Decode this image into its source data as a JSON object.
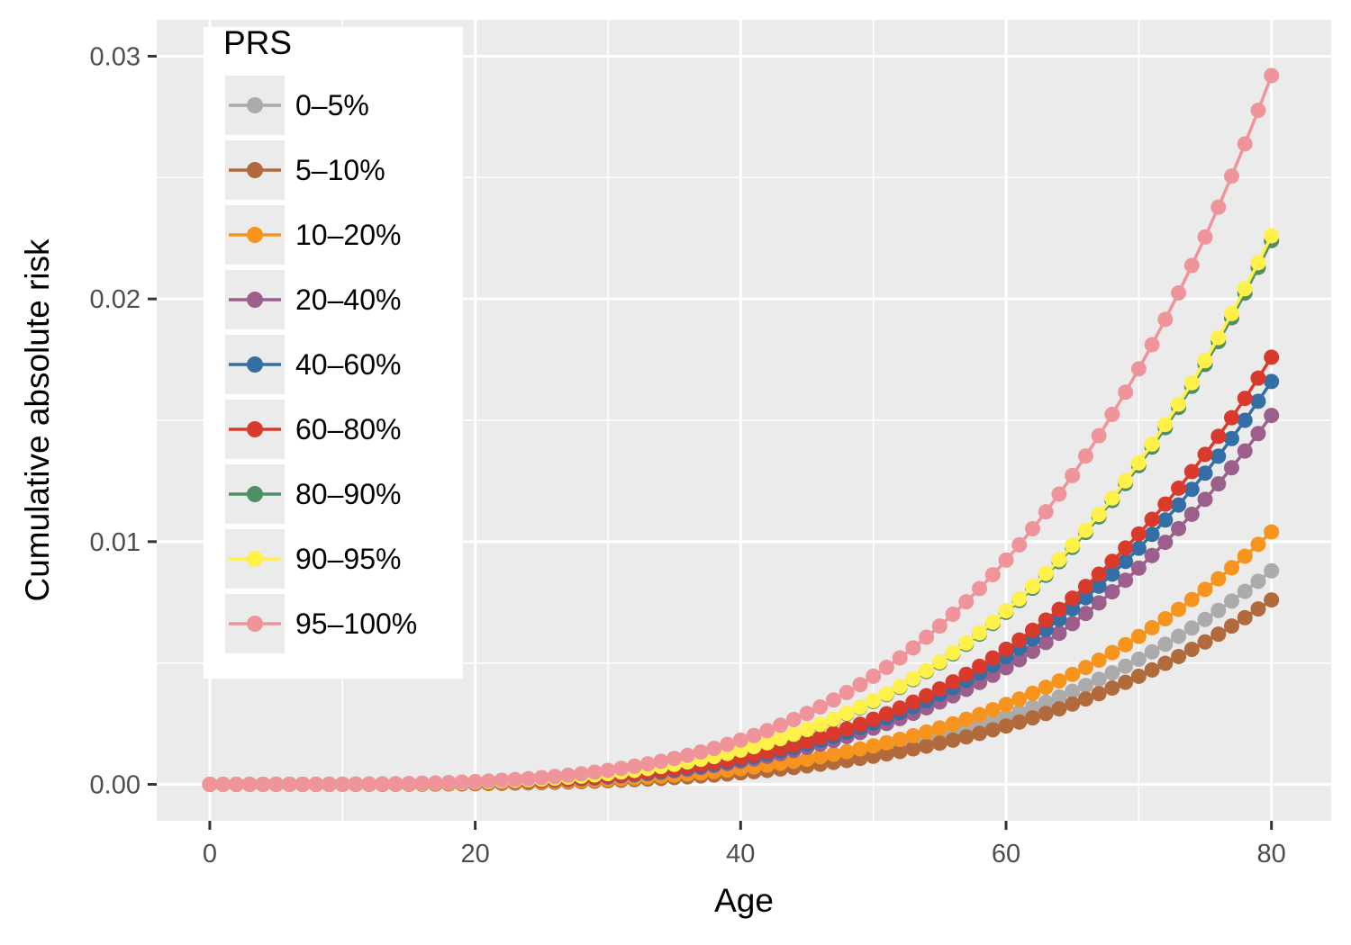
{
  "chart_data": {
    "type": "line",
    "title": "",
    "xlabel": "Age",
    "ylabel": "Cumulative absolute risk",
    "xlim": [
      -4,
      84.5
    ],
    "ylim": [
      -0.0015,
      0.0315
    ],
    "x_ticks": [
      0,
      20,
      40,
      60,
      80
    ],
    "x_tick_labels": [
      "0",
      "20",
      "40",
      "60",
      "80"
    ],
    "y_ticks": [
      0,
      0.01,
      0.02,
      0.03
    ],
    "y_tick_labels": [
      "0.00",
      "0.01",
      "0.02",
      "0.03"
    ],
    "grid": true,
    "panel_background": "#EBEBEB",
    "markers": true,
    "legend": {
      "title": "PRS",
      "position": "top-left"
    },
    "x": {
      "start": 0,
      "end": 80,
      "step": 1
    },
    "series_model": "value(age) = final_risk * (age/80)^4, ages 0..80 inclusive",
    "series": [
      {
        "name": "0–5%",
        "color": "#ABABAB",
        "final_risk": 0.0088
      },
      {
        "name": "5–10%",
        "color": "#B06A3B",
        "final_risk": 0.0076
      },
      {
        "name": "10–20%",
        "color": "#F7941D",
        "final_risk": 0.0104
      },
      {
        "name": "20–40%",
        "color": "#9C5E8A",
        "final_risk": 0.0152
      },
      {
        "name": "40–60%",
        "color": "#336FA5",
        "final_risk": 0.0166
      },
      {
        "name": "60–80%",
        "color": "#D93A2B",
        "final_risk": 0.0176
      },
      {
        "name": "80–90%",
        "color": "#4F8F65",
        "final_risk": 0.0224
      },
      {
        "name": "90–95%",
        "color": "#FFF04A",
        "final_risk": 0.0226
      },
      {
        "name": "95–100%",
        "color": "#EF949A",
        "final_risk": 0.0292
      }
    ]
  }
}
